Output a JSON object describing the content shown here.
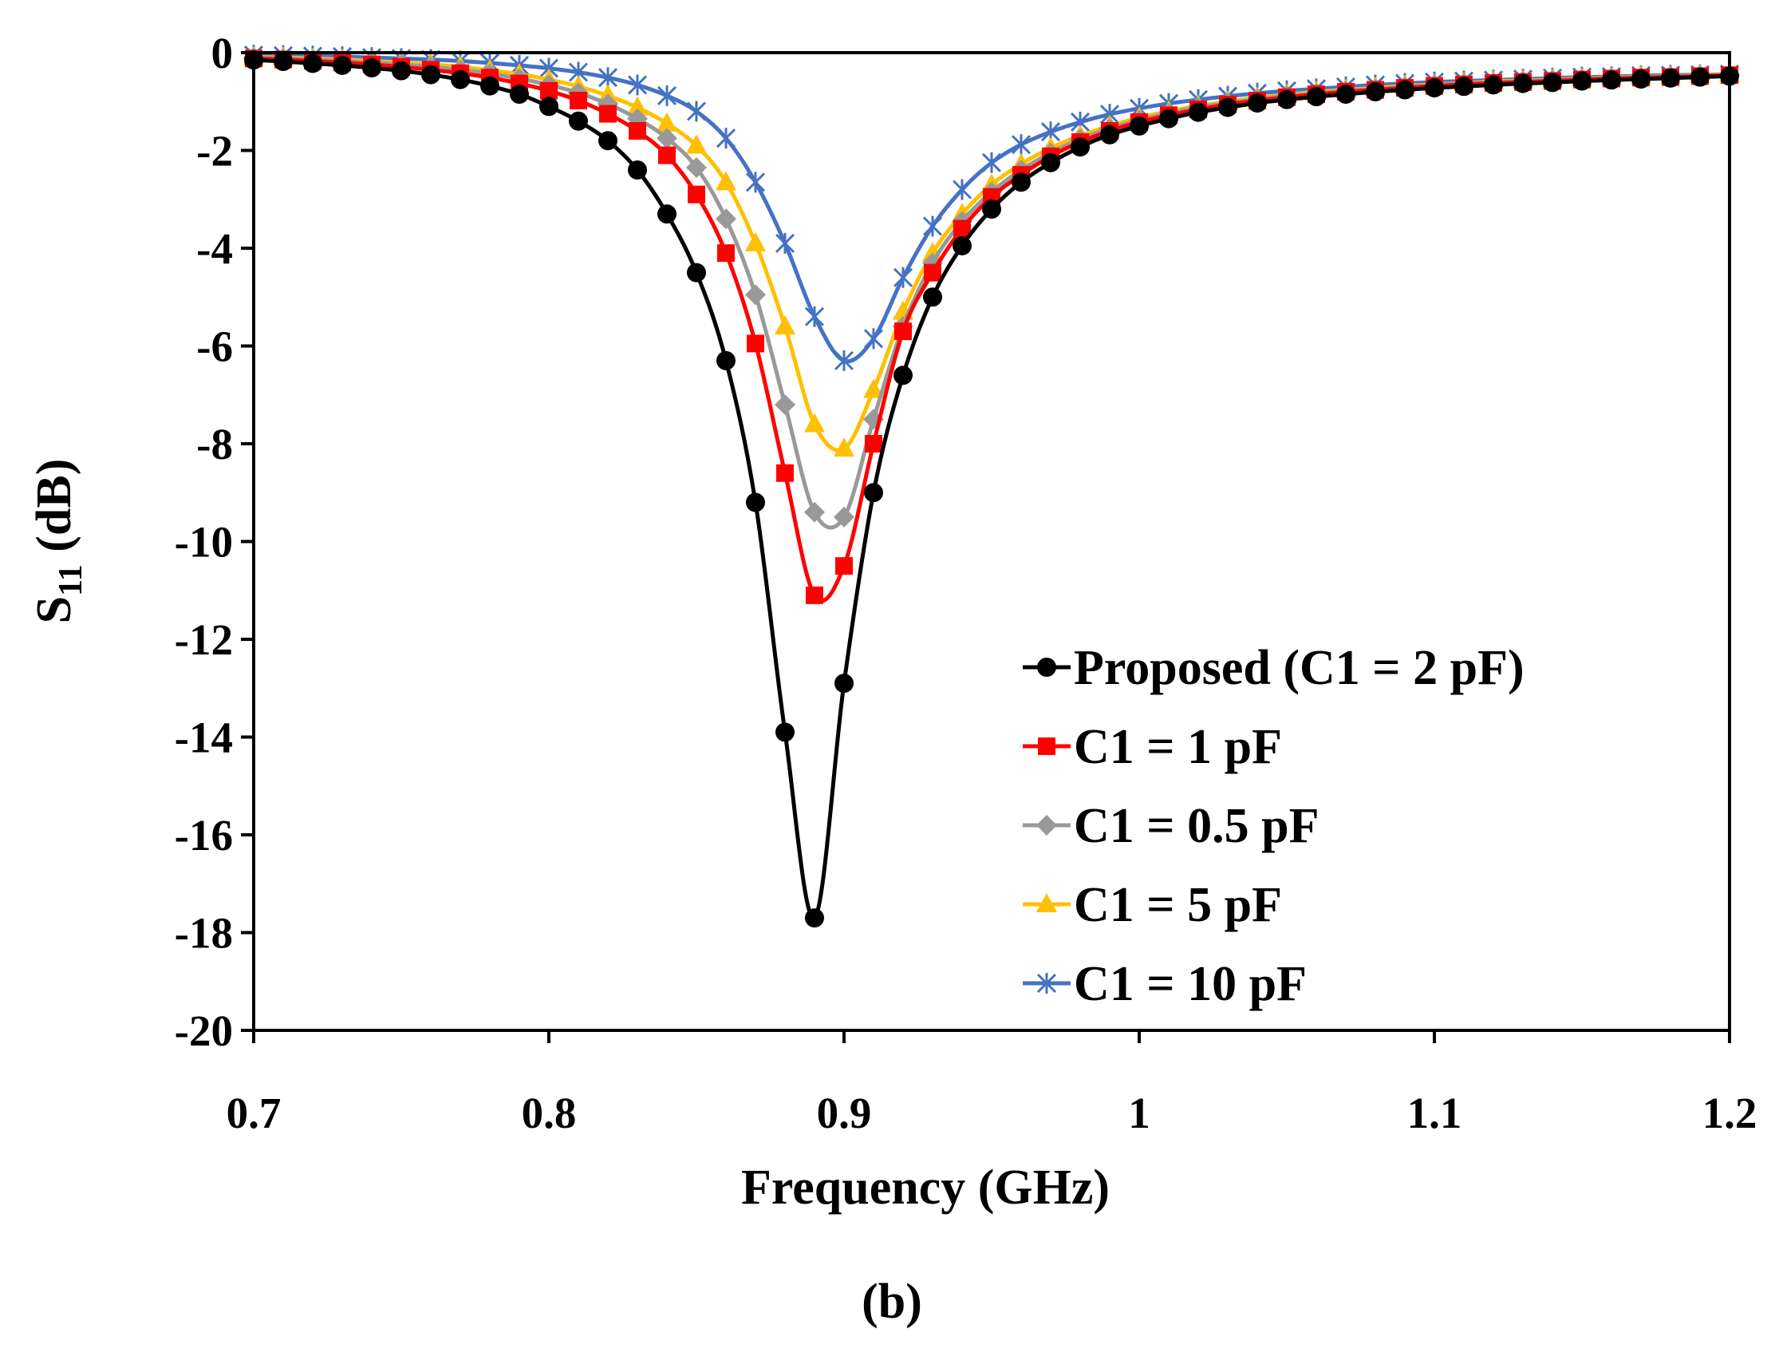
{
  "chart_data": {
    "type": "line",
    "title": "",
    "caption": "(b)",
    "xlabel": "Frequency (GHz)",
    "ylabel_main": "S",
    "ylabel_sub": "11",
    "ylabel_unit": " (dB)",
    "xlim": [
      0.7,
      1.2
    ],
    "ylim": [
      -20,
      0
    ],
    "xticks": [
      0.7,
      0.8,
      0.9,
      1.0,
      1.1,
      1.2
    ],
    "xtick_labels": [
      "0.7",
      "0.8",
      "0.9",
      "1",
      "1.1",
      "1.2"
    ],
    "yticks": [
      0,
      -2,
      -4,
      -6,
      -8,
      -10,
      -12,
      -14,
      -16,
      -18,
      -20
    ],
    "ytick_labels": [
      "0",
      "-2",
      "-4",
      "-6",
      "-8",
      "-10",
      "-12",
      "-14",
      "-16",
      "-18",
      "-20"
    ],
    "grid": false,
    "legend_position": "bottom-right",
    "x": [
      0.7,
      0.71,
      0.72,
      0.73,
      0.74,
      0.75,
      0.76,
      0.77,
      0.78,
      0.79,
      0.8,
      0.81,
      0.82,
      0.83,
      0.84,
      0.85,
      0.86,
      0.87,
      0.88,
      0.89,
      0.9,
      0.91,
      0.92,
      0.93,
      0.94,
      0.95,
      0.96,
      0.97,
      0.98,
      0.99,
      1.0,
      1.01,
      1.02,
      1.03,
      1.04,
      1.05,
      1.06,
      1.07,
      1.08,
      1.09,
      1.1,
      1.11,
      1.12,
      1.13,
      1.14,
      1.15,
      1.16,
      1.17,
      1.18,
      1.19,
      1.2
    ],
    "series": [
      {
        "name": "Proposed (C1 = 2 pF)",
        "color": "#000000",
        "marker": "circle",
        "values": [
          -0.15,
          -0.18,
          -0.22,
          -0.26,
          -0.31,
          -0.37,
          -0.45,
          -0.55,
          -0.68,
          -0.85,
          -1.1,
          -1.4,
          -1.8,
          -2.4,
          -3.3,
          -4.5,
          -6.3,
          -9.2,
          -13.9,
          -17.7,
          -12.9,
          -9.0,
          -6.6,
          -5.0,
          -3.95,
          -3.2,
          -2.65,
          -2.25,
          -1.93,
          -1.68,
          -1.5,
          -1.35,
          -1.22,
          -1.12,
          -1.03,
          -0.96,
          -0.9,
          -0.85,
          -0.8,
          -0.76,
          -0.72,
          -0.69,
          -0.66,
          -0.63,
          -0.61,
          -0.58,
          -0.56,
          -0.54,
          -0.52,
          -0.5,
          -0.48
        ]
      },
      {
        "name": "C1 = 1 pF",
        "color": "#ff0000",
        "marker": "square",
        "values": [
          -0.12,
          -0.14,
          -0.17,
          -0.2,
          -0.24,
          -0.29,
          -0.35,
          -0.42,
          -0.51,
          -0.63,
          -0.78,
          -0.98,
          -1.25,
          -1.6,
          -2.1,
          -2.9,
          -4.1,
          -5.95,
          -8.6,
          -11.1,
          -10.5,
          -8.0,
          -5.7,
          -4.5,
          -3.6,
          -2.95,
          -2.5,
          -2.12,
          -1.83,
          -1.6,
          -1.42,
          -1.28,
          -1.16,
          -1.06,
          -0.98,
          -0.91,
          -0.85,
          -0.8,
          -0.76,
          -0.72,
          -0.68,
          -0.65,
          -0.62,
          -0.6,
          -0.58,
          -0.55,
          -0.53,
          -0.51,
          -0.5,
          -0.48,
          -0.46
        ]
      },
      {
        "name": "C1 = 0.5 pF",
        "color": "#999999",
        "marker": "diamond",
        "values": [
          -0.1,
          -0.12,
          -0.14,
          -0.17,
          -0.2,
          -0.24,
          -0.29,
          -0.35,
          -0.43,
          -0.53,
          -0.66,
          -0.82,
          -1.05,
          -1.35,
          -1.75,
          -2.35,
          -3.4,
          -4.95,
          -7.2,
          -9.4,
          -9.5,
          -7.5,
          -5.6,
          -4.3,
          -3.45,
          -2.85,
          -2.4,
          -2.05,
          -1.77,
          -1.55,
          -1.38,
          -1.24,
          -1.12,
          -1.03,
          -0.95,
          -0.88,
          -0.83,
          -0.78,
          -0.74,
          -0.7,
          -0.66,
          -0.63,
          -0.61,
          -0.58,
          -0.56,
          -0.54,
          -0.52,
          -0.5,
          -0.48,
          -0.47,
          -0.45
        ]
      },
      {
        "name": "C1 = 5 pF",
        "color": "#ffc000",
        "marker": "triangle",
        "values": [
          -0.09,
          -0.1,
          -0.12,
          -0.14,
          -0.17,
          -0.2,
          -0.24,
          -0.29,
          -0.36,
          -0.44,
          -0.55,
          -0.69,
          -0.88,
          -1.12,
          -1.45,
          -1.9,
          -2.65,
          -3.9,
          -5.6,
          -7.6,
          -8.1,
          -6.9,
          -5.3,
          -4.1,
          -3.3,
          -2.7,
          -2.28,
          -1.95,
          -1.7,
          -1.5,
          -1.33,
          -1.2,
          -1.09,
          -1.0,
          -0.92,
          -0.86,
          -0.8,
          -0.76,
          -0.72,
          -0.68,
          -0.65,
          -0.62,
          -0.59,
          -0.57,
          -0.55,
          -0.53,
          -0.51,
          -0.49,
          -0.48,
          -0.46,
          -0.44
        ]
      },
      {
        "name": "C1 = 10 pF",
        "color": "#4472c4",
        "marker": "star",
        "values": [
          -0.05,
          -0.06,
          -0.07,
          -0.08,
          -0.1,
          -0.12,
          -0.14,
          -0.17,
          -0.21,
          -0.26,
          -0.32,
          -0.4,
          -0.51,
          -0.66,
          -0.88,
          -1.2,
          -1.75,
          -2.65,
          -3.9,
          -5.4,
          -6.3,
          -5.85,
          -4.6,
          -3.55,
          -2.8,
          -2.25,
          -1.88,
          -1.62,
          -1.42,
          -1.26,
          -1.14,
          -1.04,
          -0.96,
          -0.89,
          -0.83,
          -0.78,
          -0.74,
          -0.7,
          -0.66,
          -0.63,
          -0.6,
          -0.58,
          -0.56,
          -0.54,
          -0.52,
          -0.5,
          -0.49,
          -0.47,
          -0.46,
          -0.45,
          -0.44
        ]
      }
    ]
  }
}
